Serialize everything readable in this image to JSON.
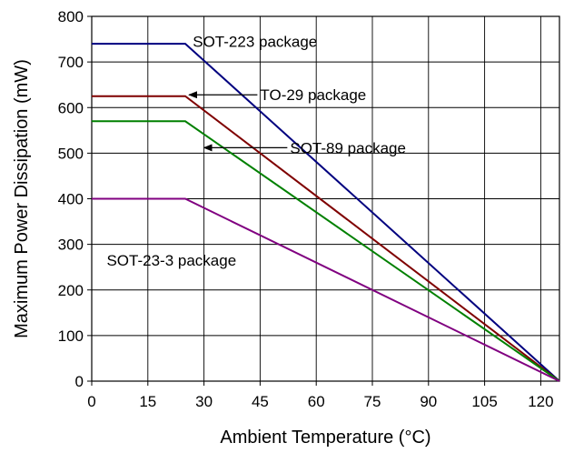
{
  "chart_data": {
    "type": "line",
    "title": "",
    "xlabel": "Ambient Temperature (°C)",
    "ylabel": "Maximum Power Dissipation (mW)",
    "xlim": [
      0,
      125
    ],
    "ylim": [
      0,
      800
    ],
    "x_ticks": [
      0,
      15,
      30,
      45,
      60,
      75,
      90,
      105,
      120
    ],
    "y_ticks": [
      0,
      100,
      200,
      300,
      400,
      500,
      600,
      700,
      800
    ],
    "grid": true,
    "legend": "none",
    "series": [
      {
        "name": "SOT-223 package",
        "color": "#00007f",
        "points": [
          [
            0,
            740
          ],
          [
            25,
            740
          ],
          [
            125,
            0
          ]
        ]
      },
      {
        "name": "TO-29 package",
        "color": "#7f0000",
        "points": [
          [
            0,
            625
          ],
          [
            25,
            625
          ],
          [
            125,
            0
          ]
        ]
      },
      {
        "name": "SOT-89 package",
        "color": "#008000",
        "points": [
          [
            0,
            570
          ],
          [
            25,
            570
          ],
          [
            125,
            0
          ]
        ]
      },
      {
        "name": "SOT-23-3 package",
        "color": "#800080",
        "points": [
          [
            0,
            400
          ],
          [
            25,
            400
          ],
          [
            125,
            0
          ]
        ]
      }
    ],
    "annotations": [
      {
        "text": "SOT-223 package",
        "series": 0,
        "x": 27,
        "y": 745,
        "arrow": false
      },
      {
        "text": "TO-29 package",
        "series": 1,
        "x": 45,
        "y": 628,
        "arrow": true,
        "arrow_to": [
          26,
          628
        ]
      },
      {
        "text": "SOT-89 package",
        "series": 2,
        "x": 53,
        "y": 512,
        "arrow": true,
        "arrow_to": [
          30,
          512
        ]
      },
      {
        "text": "SOT-23-3 package",
        "series": 3,
        "x": 4,
        "y": 265,
        "arrow": false
      }
    ]
  }
}
